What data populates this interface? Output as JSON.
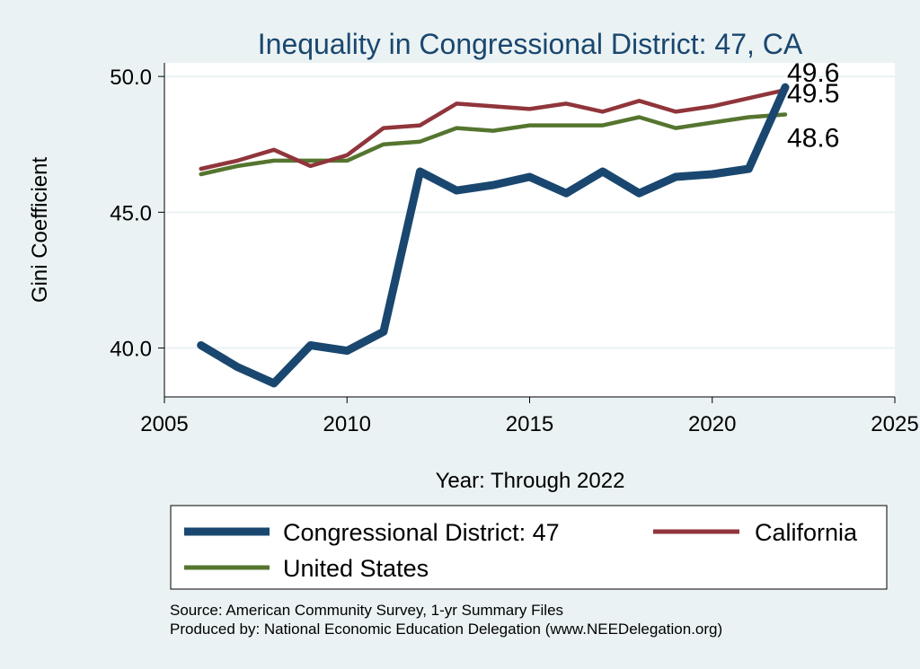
{
  "chart_data": {
    "type": "line",
    "title": "Inequality in Congressional District:  47, CA",
    "xlabel": "Year: Through 2022",
    "ylabel": "Gini Coefficient",
    "xlim": [
      2005,
      2025
    ],
    "ylim": [
      38.2,
      50.5
    ],
    "x_ticks": [
      "2005",
      "2010",
      "2015",
      "2020",
      "2025"
    ],
    "y_ticks": [
      "40.0",
      "45.0",
      "50.0"
    ],
    "x": [
      2006,
      2007,
      2008,
      2009,
      2010,
      2011,
      2012,
      2013,
      2014,
      2015,
      2016,
      2017,
      2018,
      2019,
      2020,
      2021,
      2022
    ],
    "series": [
      {
        "name": "Congressional District:  47",
        "color": "#1a476f",
        "values": [
          40.1,
          39.3,
          38.7,
          40.1,
          39.9,
          40.6,
          46.5,
          45.8,
          46.0,
          46.3,
          45.7,
          46.5,
          45.7,
          46.3,
          46.4,
          46.6,
          49.6
        ],
        "end_label": "49.6"
      },
      {
        "name": "California",
        "color": "#90353b",
        "values": [
          46.6,
          46.9,
          47.3,
          46.7,
          47.1,
          48.1,
          48.2,
          49.0,
          48.9,
          48.8,
          49.0,
          48.7,
          49.1,
          48.7,
          48.9,
          49.2,
          49.5
        ],
        "end_label": "49.5"
      },
      {
        "name": "United States",
        "color": "#55752f",
        "values": [
          46.4,
          46.7,
          46.9,
          46.9,
          46.9,
          47.5,
          47.6,
          48.1,
          48.0,
          48.2,
          48.2,
          48.2,
          48.5,
          48.1,
          48.3,
          48.5,
          48.6
        ],
        "end_label": "48.6"
      }
    ],
    "legend_position": "bottom"
  },
  "source": {
    "line1": "Source: American Community Survey, 1-yr Summary Files",
    "line2": "Produced by: National Economic Education Delegation (www.NEEDelegation.org)"
  }
}
